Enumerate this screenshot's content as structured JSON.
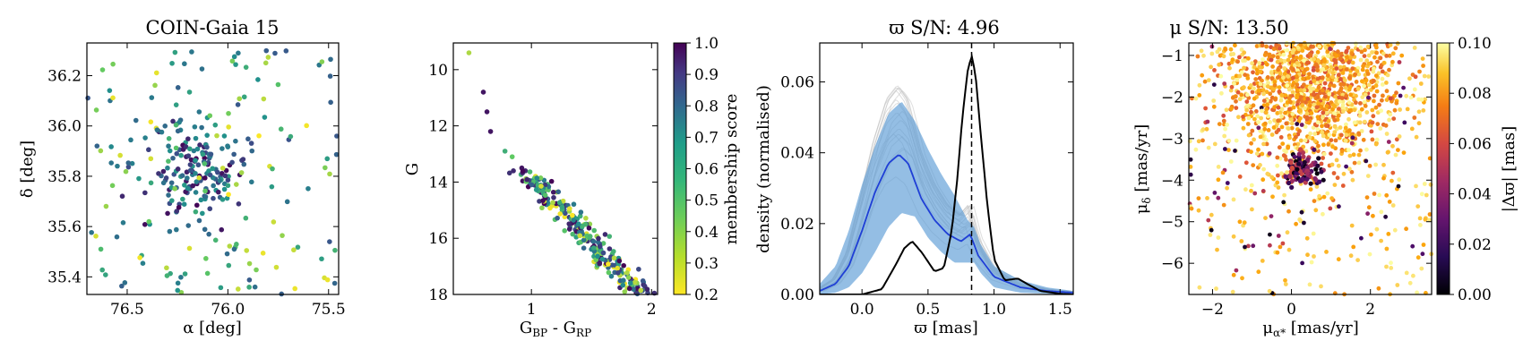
{
  "chart_data": [
    {
      "type": "scatter",
      "title": "COIN-Gaia 15",
      "xlabel": "α [deg]",
      "ylabel": "δ [deg]",
      "xlim": [
        76.7,
        75.45
      ],
      "ylim": [
        35.33,
        36.33
      ],
      "xticks": [
        76.5,
        76.0,
        75.5
      ],
      "xtick_labels": [
        "76.5",
        "76.0",
        "75.5"
      ],
      "yticks": [
        35.4,
        35.6,
        35.8,
        36.0,
        36.2
      ],
      "ytick_labels": [
        "35.4",
        "35.6",
        "35.8",
        "36.0",
        "36.2"
      ],
      "color_by": "membership score (shared viridis colorbar)",
      "points_summary": "~300 stars concentrated near α≈76.15, δ≈35.83 with high membership; scattered field stars with low membership"
    },
    {
      "type": "scatter",
      "title": "",
      "xlabel": "G",
      "xlabel_sub1": "BP",
      "xlabel_mid": " - G",
      "xlabel_sub2": "RP",
      "ylabel": "G",
      "xlim": [
        0.35,
        2.05
      ],
      "ylim": [
        18,
        9.05
      ],
      "xticks": [
        1,
        2
      ],
      "xtick_labels": [
        "1",
        "2"
      ],
      "yticks": [
        10,
        12,
        14,
        16,
        18
      ],
      "ytick_labels": [
        "10",
        "12",
        "14",
        "16",
        "18"
      ],
      "colorbar": {
        "label": "membership score",
        "range": [
          0.2,
          1.0
        ],
        "ticks": [
          0.2,
          0.3,
          0.4,
          0.5,
          0.6,
          0.7,
          0.8,
          0.9,
          1.0
        ],
        "tick_labels": [
          "0.2",
          "0.3",
          "0.4",
          "0.5",
          "0.6",
          "0.7",
          "0.8",
          "0.9",
          "1.0"
        ],
        "colormap": "viridis_r"
      },
      "points_summary": "Main sequence from (0.48, 9.4) down to (2.0, 18)"
    },
    {
      "type": "line",
      "title": "ϖ S/N: 4.96",
      "xlabel": "ϖ [mas]",
      "ylabel": "density (normalised)",
      "xlim": [
        -0.32,
        1.6
      ],
      "ylim": [
        0,
        0.071
      ],
      "xticks": [
        0.0,
        0.5,
        1.0,
        1.5
      ],
      "xtick_labels": [
        "0.0",
        "0.5",
        "1.0",
        "1.5"
      ],
      "yticks": [
        0.0,
        0.02,
        0.04,
        0.06
      ],
      "ytick_labels": [
        "0.00",
        "0.02",
        "0.04",
        "0.06"
      ],
      "vline_x": 0.83,
      "series": [
        {
          "name": "median field (blue)",
          "color": "#1f3fd6",
          "x": [
            -0.32,
            -0.2,
            -0.1,
            0.0,
            0.1,
            0.2,
            0.28,
            0.35,
            0.45,
            0.55,
            0.65,
            0.75,
            0.82,
            0.88,
            1.0,
            1.2,
            1.4,
            1.6
          ],
          "y": [
            0.001,
            0.003,
            0.008,
            0.018,
            0.029,
            0.037,
            0.0395,
            0.037,
            0.027,
            0.021,
            0.017,
            0.015,
            0.017,
            0.011,
            0.005,
            0.002,
            0.001,
            0.0005
          ]
        },
        {
          "name": "band upper",
          "color": "#5b9bd5",
          "x": [
            -0.32,
            -0.2,
            -0.1,
            0.0,
            0.1,
            0.2,
            0.3,
            0.4,
            0.5,
            0.6,
            0.7,
            0.8,
            0.85,
            0.9,
            1.0,
            1.2,
            1.4,
            1.6
          ],
          "y": [
            0.003,
            0.008,
            0.018,
            0.031,
            0.042,
            0.051,
            0.0545,
            0.049,
            0.041,
            0.034,
            0.028,
            0.021,
            0.019,
            0.014,
            0.008,
            0.004,
            0.002,
            0.001
          ]
        },
        {
          "name": "band lower",
          "color": "#5b9bd5",
          "x": [
            -0.32,
            -0.2,
            -0.1,
            0.0,
            0.1,
            0.2,
            0.3,
            0.4,
            0.5,
            0.6,
            0.7,
            0.8,
            0.85,
            0.9,
            1.0,
            1.2,
            1.4,
            1.6
          ],
          "y": [
            0.0,
            0.0005,
            0.002,
            0.006,
            0.012,
            0.019,
            0.023,
            0.022,
            0.016,
            0.012,
            0.009,
            0.009,
            0.009,
            0.006,
            0.002,
            0.0005,
            0.0002,
            0.0
          ]
        },
        {
          "name": "cluster (black)",
          "color": "#000000",
          "x": [
            -0.32,
            0.0,
            0.15,
            0.25,
            0.32,
            0.38,
            0.45,
            0.55,
            0.62,
            0.68,
            0.72,
            0.76,
            0.8,
            0.83,
            0.86,
            0.9,
            0.95,
            1.0,
            1.08,
            1.18,
            1.25,
            1.35,
            1.5,
            1.6
          ],
          "y": [
            0.0,
            0.0,
            0.0015,
            0.008,
            0.013,
            0.015,
            0.012,
            0.0065,
            0.0075,
            0.018,
            0.032,
            0.05,
            0.063,
            0.0675,
            0.062,
            0.045,
            0.025,
            0.01,
            0.004,
            0.0045,
            0.003,
            0.001,
            0.0002,
            0.0
          ]
        }
      ]
    },
    {
      "type": "scatter",
      "title": "μ S/N: 13.50",
      "xlabel": "μ",
      "xlabel_sub": "α*",
      "xlabel_unit": " [mas/yr]",
      "ylabel": "μ",
      "ylabel_sub": "δ",
      "ylabel_unit": " [mas/yr]",
      "xlim": [
        -2.6,
        3.55
      ],
      "ylim": [
        -6.75,
        -0.7
      ],
      "xticks": [
        -2,
        0,
        2
      ],
      "xtick_labels": [
        "−2",
        "0",
        "2"
      ],
      "yticks": [
        -1,
        -2,
        -3,
        -4,
        -5,
        -6
      ],
      "ytick_labels": [
        "−1",
        "−2",
        "−3",
        "−4",
        "−5",
        "−6"
      ],
      "colorbar": {
        "label": "|Δϖ| [mas]",
        "range": [
          0.0,
          0.1
        ],
        "ticks": [
          0.0,
          0.02,
          0.04,
          0.06,
          0.08,
          0.1
        ],
        "tick_labels": [
          "0.00",
          "0.02",
          "0.04",
          "0.06",
          "0.08",
          "0.10"
        ],
        "colormap": "inferno"
      },
      "points_summary": "Dense field cloud near (0.5, -1.5) with large |Δϖ|; cluster clump near (0.3, -3.75) with small |Δϖ|"
    }
  ]
}
